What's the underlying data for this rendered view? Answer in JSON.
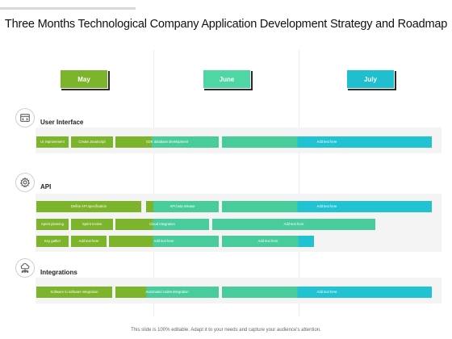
{
  "title": "Three Months Technological Company Application Development Strategy and Roadmap",
  "footer": "This slide is 100% editable. Adapt it to your needs and capture your audience's attention.",
  "colors": {
    "green": "#7cb42b",
    "teal": "#48cc9c",
    "cyan": "#21c2d2",
    "panel": "#f4f4f4"
  },
  "months": [
    {
      "label": "May",
      "color": "#7cb42b",
      "text_color": "#ffffff"
    },
    {
      "label": "June",
      "color": "#4fd6a4",
      "text_color": "#ffffff"
    },
    {
      "label": "July",
      "color": "#1fbfcf",
      "text_color": "#ffffff"
    }
  ],
  "sections": [
    {
      "label": "User Interface",
      "icon": "browser-code-icon"
    },
    {
      "label": "API",
      "icon": "gear-icon"
    },
    {
      "label": "Integrations",
      "icon": "cloud-network-icon"
    }
  ],
  "bars": {
    "ui": [
      "UI improvement",
      "Create JavaScript",
      "SDK database development",
      "",
      "",
      "Add text here"
    ],
    "api_row1": [
      "Define API specification",
      "API beta release",
      "",
      "Add text here"
    ],
    "api_row2": [
      "Sprint planning",
      "Sprint review",
      "Cloud integration",
      "Add text here"
    ],
    "api_row3": [
      "Key gather",
      "Add text here",
      "Add text here",
      "Add text here",
      ""
    ],
    "integrations": [
      "Software to software integration",
      "Automated codes integration",
      "",
      "Add text here"
    ]
  }
}
